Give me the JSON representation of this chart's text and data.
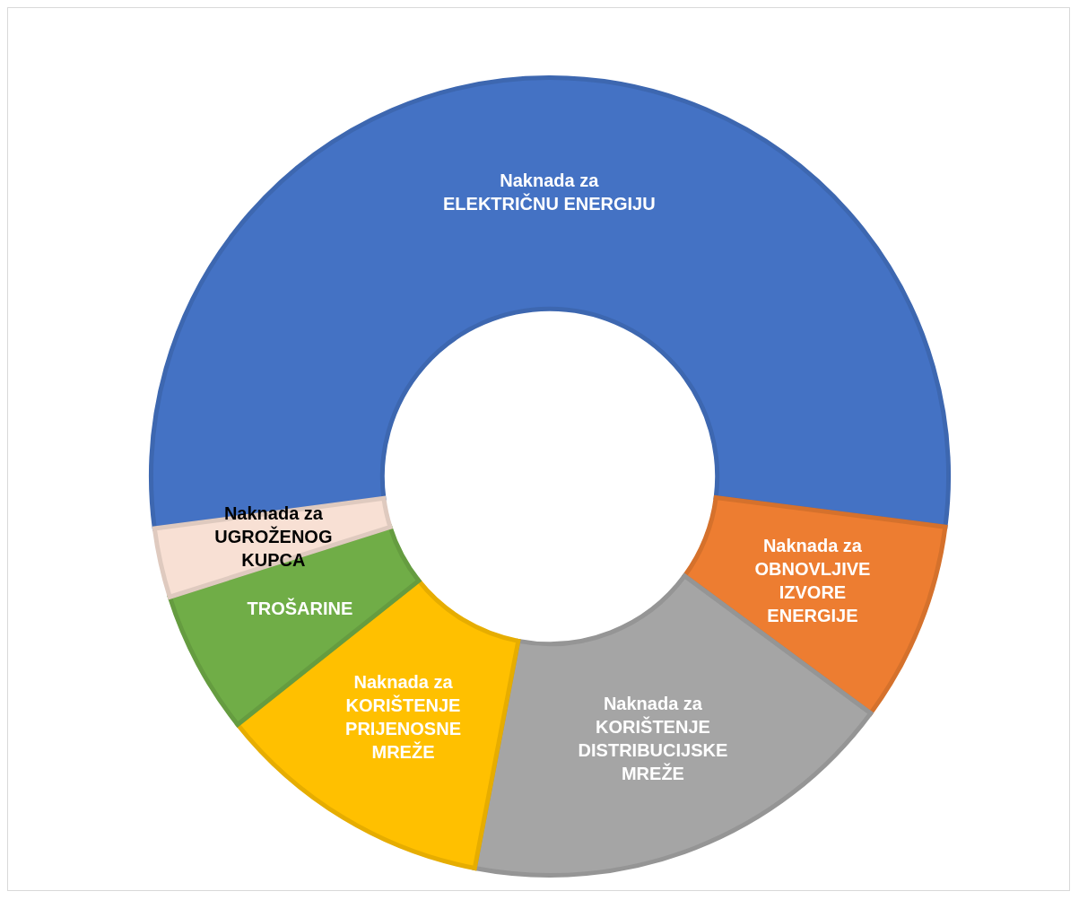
{
  "chart_data": {
    "type": "donut",
    "categories": [
      "Naknada za\nELEKTRIČNU ENERGIJU",
      "Naknada za\nOBNOVLJIVE\nIZVORE\nENERGIJE",
      "Naknada za\nKORIŠTENJE\nDISTRIBUCIJSKE\nMREŽE",
      "Naknada za\nKORIŠTENJE\nPRIJENOSNE\nMREŽE",
      "TROŠARINE",
      "Naknada za\nUGROŽENOG\nKUPCA"
    ],
    "values": [
      54.1,
      8.1,
      17.9,
      11.3,
      5.8,
      2.8
    ],
    "colors": [
      "#4472c4",
      "#ed7d31",
      "#a5a5a5",
      "#ffc000",
      "#70ad47",
      "#f8e0d4"
    ],
    "legend": false
  }
}
